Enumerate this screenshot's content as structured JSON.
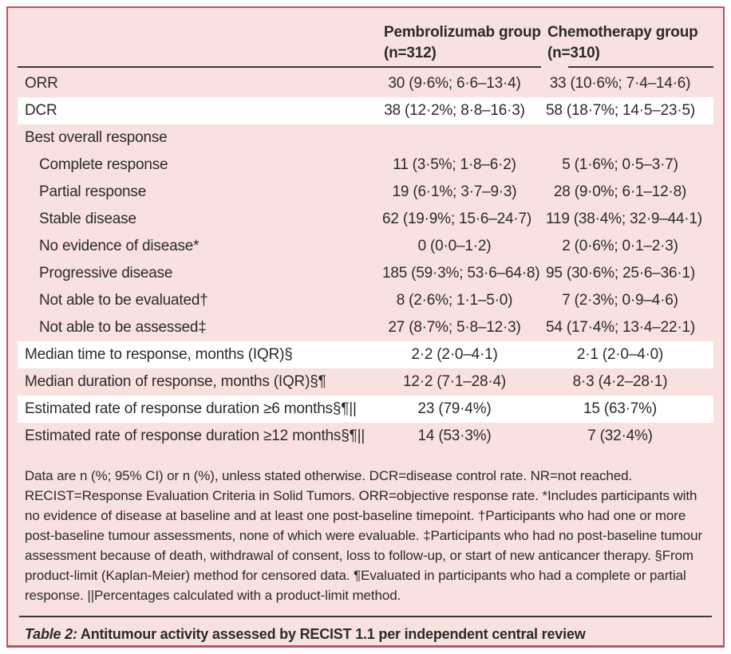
{
  "colors": {
    "table_bg": "#f8e1df",
    "border": "#c34e68",
    "band": "#ffffff",
    "rule": "#3a3a3a",
    "text": "#2b2b2b"
  },
  "table": {
    "columns": [
      {
        "line1": "Pembrolizumab group",
        "line2": "(n=312)"
      },
      {
        "line1": "Chemotherapy group",
        "line2": "(n=310)"
      }
    ],
    "rows": [
      {
        "label": "ORR",
        "indent": 0,
        "band": "pink",
        "pembro": "30 (9·6%; 6·6–13·4)",
        "chemo": "33 (10·6%; 7·4–14·6)"
      },
      {
        "label": "DCR",
        "indent": 0,
        "band": "white",
        "pembro": "38 (12·2%; 8·8–16·3)",
        "chemo": "58 (18·7%; 14·5–23·5)"
      },
      {
        "label": "Best overall response",
        "indent": 0,
        "band": "pink",
        "pembro": "",
        "chemo": ""
      },
      {
        "label": "Complete response",
        "indent": 1,
        "band": "pink",
        "pembro": "11 (3·5%; 1·8–6·2)",
        "chemo": "5 (1·6%; 0·5–3·7)"
      },
      {
        "label": "Partial response",
        "indent": 1,
        "band": "pink",
        "pembro": "19 (6·1%; 3·7–9·3)",
        "chemo": "28 (9·0%; 6·1–12·8)"
      },
      {
        "label": "Stable disease",
        "indent": 1,
        "band": "pink",
        "pembro": "62 (19·9%; 15·6–24·7)",
        "chemo": "119 (38·4%; 32·9–44·1)"
      },
      {
        "label": "No evidence of disease*",
        "indent": 1,
        "band": "pink",
        "pembro": "0 (0·0–1·2)",
        "chemo": "2 (0·6%; 0·1–2·3)"
      },
      {
        "label": "Progressive disease",
        "indent": 1,
        "band": "pink",
        "pembro": "185 (59·3%; 53·6–64·8)",
        "chemo": "95 (30·6%; 25·6–36·1)"
      },
      {
        "label": "Not able to be evaluated†",
        "indent": 1,
        "band": "pink",
        "pembro": "8 (2·6%; 1·1–5·0)",
        "chemo": "7 (2·3%; 0·9–4·6)"
      },
      {
        "label": "Not able to be assessed‡",
        "indent": 1,
        "band": "pink",
        "pembro": "27 (8·7%; 5·8–12·3)",
        "chemo": "54 (17·4%; 13·4–22·1)"
      },
      {
        "label": "Median time to response, months (IQR)§",
        "indent": 0,
        "band": "white",
        "pembro": "2·2 (2·0–4·1)",
        "chemo": "2·1 (2·0–4·0)"
      },
      {
        "label": "Median duration of response, months (IQR)§¶",
        "indent": 0,
        "band": "pink",
        "pembro": "12·2 (7·1–28·4)",
        "chemo": "8·3 (4·2–28·1)"
      },
      {
        "label": "Estimated rate of response duration ≥6 months§¶||",
        "indent": 0,
        "band": "white",
        "pembro": "23 (79·4%)",
        "chemo": "15 (63·7%)"
      },
      {
        "label": "Estimated rate of response duration ≥12 months§¶||",
        "indent": 0,
        "band": "pink",
        "pembro": "14 (53·3%)",
        "chemo": "7 (32·4%)"
      }
    ],
    "footnote": "Data are n (%; 95% CI) or n (%), unless stated otherwise. DCR=disease control rate. NR=not reached. RECIST=Response Evaluation Criteria in Solid Tumors. ORR=objective response rate. *Includes participants with no evidence of disease at baseline and at least one post-baseline timepoint. †Participants who had one or more post-baseline tumour assessments, none of which were evaluable. ‡Participants who had no post-baseline tumour assessment because of death, withdrawal of consent, loss to follow-up, or start of new anticancer therapy. §From product-limit (Kaplan-Meier) method for censored data. ¶Evaluated in participants who had a complete or partial response. ||Percentages calculated with a product-limit method.",
    "caption_label": "Table 2:",
    "caption_text": " Antitumour activity assessed by RECIST 1.1 per independent central review"
  }
}
